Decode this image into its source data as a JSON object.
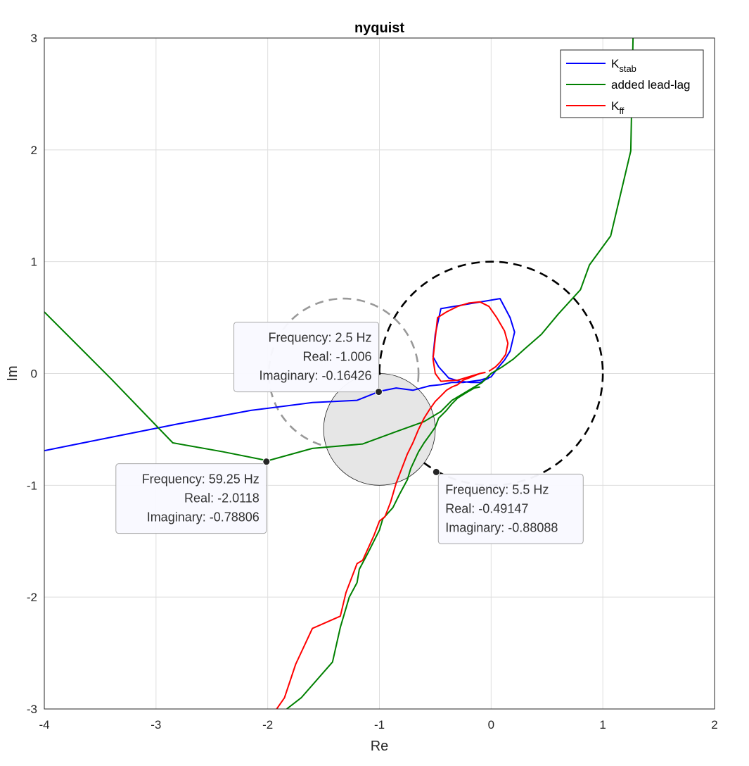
{
  "chart_data": {
    "type": "line",
    "title": "nyquist",
    "xlabel": "Re",
    "ylabel": "Im",
    "xlim": [
      -4,
      2
    ],
    "ylim": [
      -3,
      3
    ],
    "grid": true,
    "legend_placement": "top-right",
    "xticks": [
      "-4",
      "-3",
      "-2",
      "-1",
      "0",
      "1",
      "2"
    ],
    "yticks": [
      "-3",
      "-2",
      "-1",
      "0",
      "1",
      "2",
      "3"
    ],
    "legend": [
      {
        "main": "K",
        "sub": "stab",
        "color": "#0000ff"
      },
      {
        "main": "added lead-lag",
        "sub": "",
        "color": "#008000"
      },
      {
        "main": "K",
        "sub": "ff",
        "color": "#ff0000"
      }
    ],
    "series": [
      {
        "name": "K_stab",
        "color": "#0000ff",
        "x": [
          -4.0,
          -3.4,
          -2.8,
          -2.15,
          -1.6,
          -1.2,
          -1.0,
          -0.85,
          -0.7,
          -0.55,
          -0.45,
          -0.35,
          -0.25,
          -0.1,
          0.0,
          0.06,
          0.12,
          0.17,
          0.21,
          0.17,
          0.08,
          -0.45,
          -0.5,
          -0.52,
          -0.47,
          -0.38,
          -0.28,
          -0.18,
          -0.1,
          -0.02
        ],
        "y": [
          -0.69,
          -0.57,
          -0.45,
          -0.33,
          -0.26,
          -0.24,
          -0.16,
          -0.13,
          -0.15,
          -0.11,
          -0.1,
          -0.08,
          -0.08,
          -0.06,
          -0.03,
          0.05,
          0.12,
          0.2,
          0.37,
          0.5,
          0.67,
          0.58,
          0.35,
          0.15,
          0.06,
          -0.04,
          -0.07,
          -0.08,
          -0.08,
          -0.04
        ]
      },
      {
        "name": "added lead-lag",
        "color": "#008000",
        "x": [
          -4.0,
          -3.4,
          -2.85,
          -2.4,
          -2.0,
          -1.6,
          -1.15,
          -0.85,
          -0.6,
          -0.45,
          -0.35,
          -0.25,
          -0.15,
          -0.08,
          0.0,
          0.1,
          0.2,
          0.3,
          0.45,
          0.6,
          0.8,
          0.88,
          1.07,
          1.25,
          1.27
        ],
        "y": [
          0.55,
          -0.05,
          -0.62,
          -0.7,
          -0.78,
          -0.67,
          -0.63,
          -0.52,
          -0.43,
          -0.34,
          -0.24,
          -0.18,
          -0.12,
          -0.08,
          0.0,
          0.06,
          0.13,
          0.22,
          0.35,
          0.53,
          0.75,
          0.97,
          1.23,
          1.99,
          3.0
        ],
        "x2": [
          -1.83,
          -1.7,
          -1.42,
          -1.35,
          -1.27,
          -1.2,
          -1.18,
          -1.1,
          -1.0,
          -0.97,
          -0.88,
          -0.82,
          -0.75,
          -0.72,
          -0.65,
          -0.6,
          -0.55,
          -0.5,
          -0.47,
          -0.4,
          -0.35,
          -0.3,
          -0.22,
          -0.15,
          -0.1
        ],
        "y2": [
          -3.0,
          -2.9,
          -2.58,
          -2.27,
          -2.0,
          -1.87,
          -1.75,
          -1.6,
          -1.4,
          -1.3,
          -1.2,
          -1.08,
          -0.95,
          -0.85,
          -0.7,
          -0.62,
          -0.55,
          -0.48,
          -0.4,
          -0.33,
          -0.27,
          -0.22,
          -0.17,
          -0.13,
          -0.12
        ]
      },
      {
        "name": "K_ff",
        "color": "#ff0000",
        "x": [
          -1.92,
          -1.85,
          -1.75,
          -1.6,
          -1.35,
          -1.3,
          -1.2,
          -1.15,
          -1.05,
          -1.0,
          -0.95,
          -0.9,
          -0.85,
          -0.8,
          -0.75,
          -0.7,
          -0.65,
          -0.6,
          -0.55,
          -0.5,
          -0.45,
          -0.4,
          -0.35,
          -0.3,
          -0.25,
          -0.2,
          -0.15,
          -0.1,
          -0.05
        ],
        "y": [
          -3.0,
          -2.9,
          -2.6,
          -2.28,
          -2.17,
          -1.96,
          -1.7,
          -1.67,
          -1.45,
          -1.32,
          -1.28,
          -1.15,
          -0.98,
          -0.85,
          -0.72,
          -0.62,
          -0.5,
          -0.4,
          -0.32,
          -0.25,
          -0.2,
          -0.15,
          -0.12,
          -0.1,
          -0.06,
          -0.04,
          -0.02,
          0.0,
          0.01
        ],
        "x2": [
          -0.1,
          -0.3,
          -0.45,
          -0.5,
          -0.52,
          -0.48,
          -0.4,
          -0.3,
          -0.2,
          -0.1,
          -0.02,
          0.05,
          0.12,
          0.15,
          0.13,
          0.08,
          0.04,
          -0.02
        ],
        "y2": [
          0.0,
          -0.06,
          -0.07,
          0.0,
          0.13,
          0.5,
          0.55,
          0.6,
          0.63,
          0.64,
          0.6,
          0.5,
          0.38,
          0.27,
          0.17,
          0.1,
          0.06,
          0.02
        ]
      }
    ],
    "circles": [
      {
        "name": "unit circle",
        "cx": 0,
        "cy": 0,
        "r": 1,
        "style": "dashed",
        "color": "#000000"
      },
      {
        "name": "gray dashed circle",
        "cx": -1.32,
        "cy": 0.0,
        "r": 0.67,
        "style": "dashed",
        "color": "#999999"
      },
      {
        "name": "filled circle",
        "cx": -1.0,
        "cy": -0.5,
        "r": 0.5,
        "style": "solid",
        "fill": "#e6e6e6",
        "color": "#222222"
      }
    ],
    "center_marker": {
      "x": -1.0,
      "y": 0.0
    },
    "datatips": [
      {
        "x": -1.006,
        "y": -0.16426,
        "lines": [
          "Frequency: 2.5 Hz",
          "Real: -1.006",
          "Imaginary: -0.16426"
        ],
        "align": "right",
        "box_side": "upper-left"
      },
      {
        "x": -2.0118,
        "y": -0.78806,
        "lines": [
          "Frequency: 59.25 Hz",
          "Real: -2.0118",
          "Imaginary: -0.78806"
        ],
        "align": "right",
        "box_side": "lower-left"
      },
      {
        "x": -0.49147,
        "y": -0.88088,
        "lines": [
          "Frequency: 5.5 Hz",
          "Real: -0.49147",
          "Imaginary: -0.88088"
        ],
        "align": "left",
        "box_side": "lower-right"
      }
    ]
  }
}
